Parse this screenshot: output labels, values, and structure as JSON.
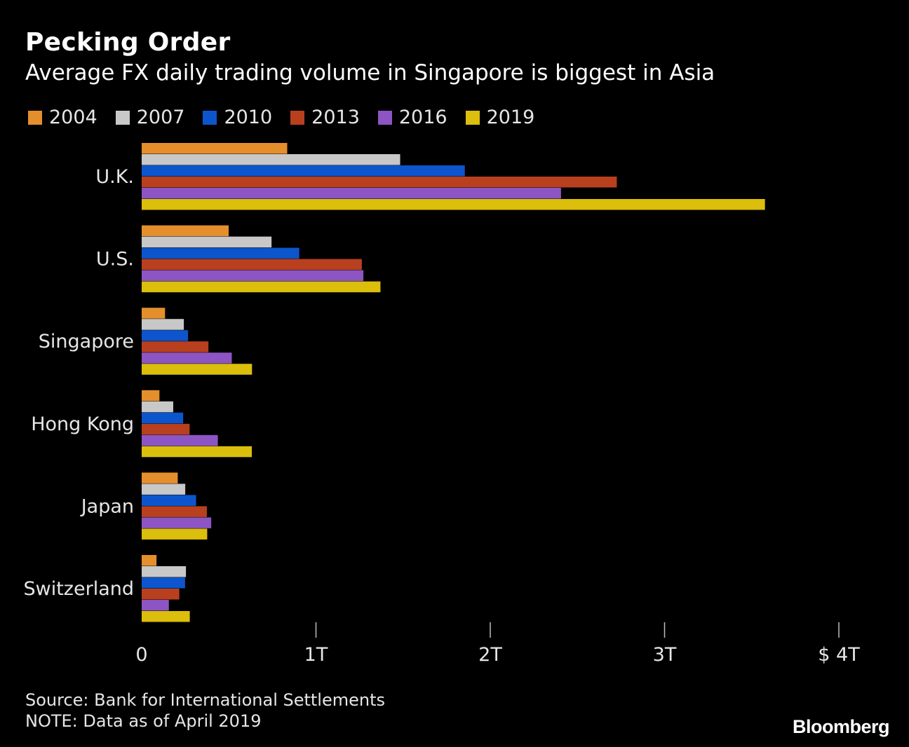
{
  "header": {
    "title": "Pecking Order",
    "subtitle": "Average FX daily trading volume in Singapore is biggest in Asia"
  },
  "chart_data": {
    "type": "bar",
    "orientation": "horizontal",
    "categories": [
      "U.K.",
      "U.S.",
      "Singapore",
      "Hong Kong",
      "Japan",
      "Switzerland"
    ],
    "series": [
      {
        "name": "2004",
        "color": "#e48f2c",
        "values": [
          0.835,
          0.499,
          0.134,
          0.102,
          0.207,
          0.085
        ]
      },
      {
        "name": "2007",
        "color": "#c8c8c8",
        "values": [
          1.483,
          0.745,
          0.242,
          0.181,
          0.25,
          0.254
        ]
      },
      {
        "name": "2010",
        "color": "#0d55cc",
        "values": [
          1.854,
          0.904,
          0.266,
          0.238,
          0.312,
          0.249
        ]
      },
      {
        "name": "2013",
        "color": "#b8401f",
        "values": [
          2.726,
          1.263,
          0.383,
          0.275,
          0.374,
          0.216
        ]
      },
      {
        "name": "2016",
        "color": "#8d55c3",
        "values": [
          2.406,
          1.272,
          0.517,
          0.437,
          0.399,
          0.156
        ]
      },
      {
        "name": "2019",
        "color": "#dcbe0c",
        "values": [
          3.576,
          1.37,
          0.633,
          0.632,
          0.376,
          0.276
        ]
      }
    ],
    "xlim": [
      0,
      4
    ],
    "xticks": [
      0,
      1,
      2,
      3,
      4
    ],
    "xtick_labels": [
      "0",
      "1T",
      "2T",
      "3T",
      "$ 4T"
    ],
    "xlabel": "",
    "ylabel": "",
    "legend_position": "top-left",
    "grid": false
  },
  "footer": {
    "source": "Source: Bank for International Settlements",
    "note": "NOTE: Data as of April 2019",
    "brand": "Bloomberg"
  }
}
